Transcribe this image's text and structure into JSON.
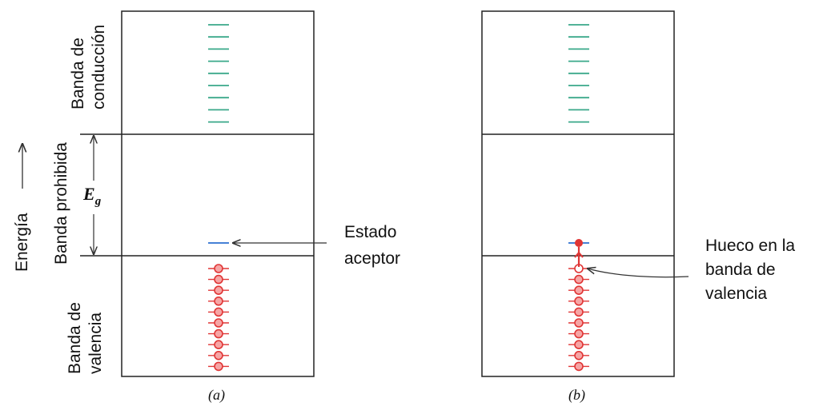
{
  "left_labels": {
    "energy": "Energía",
    "conduction_band": [
      "Banda de",
      "conducción"
    ],
    "forbidden_band": "Banda prohibida",
    "valence_band": [
      "Banda de",
      "valencia"
    ],
    "gap_symbol": "E",
    "gap_subscript": "g"
  },
  "panel_a": {
    "caption": "(a)",
    "annotation": [
      "Estado",
      "aceptor"
    ]
  },
  "panel_b": {
    "caption": "(b)",
    "annotation": [
      "Hueco en la",
      "banda de",
      "valencia"
    ]
  },
  "colors": {
    "frame": "#222222",
    "conduction_levels": "#3aa88a",
    "acceptor_level": "#2c6fd1",
    "electrons": "#e03535",
    "electron_fill": "#f6a5a5",
    "arrow": "#333333"
  },
  "icons": [
    "up-arrow-icon",
    "double-arrow-icon",
    "pointer-arrow-icon",
    "electron-icon",
    "hole-icon"
  ]
}
